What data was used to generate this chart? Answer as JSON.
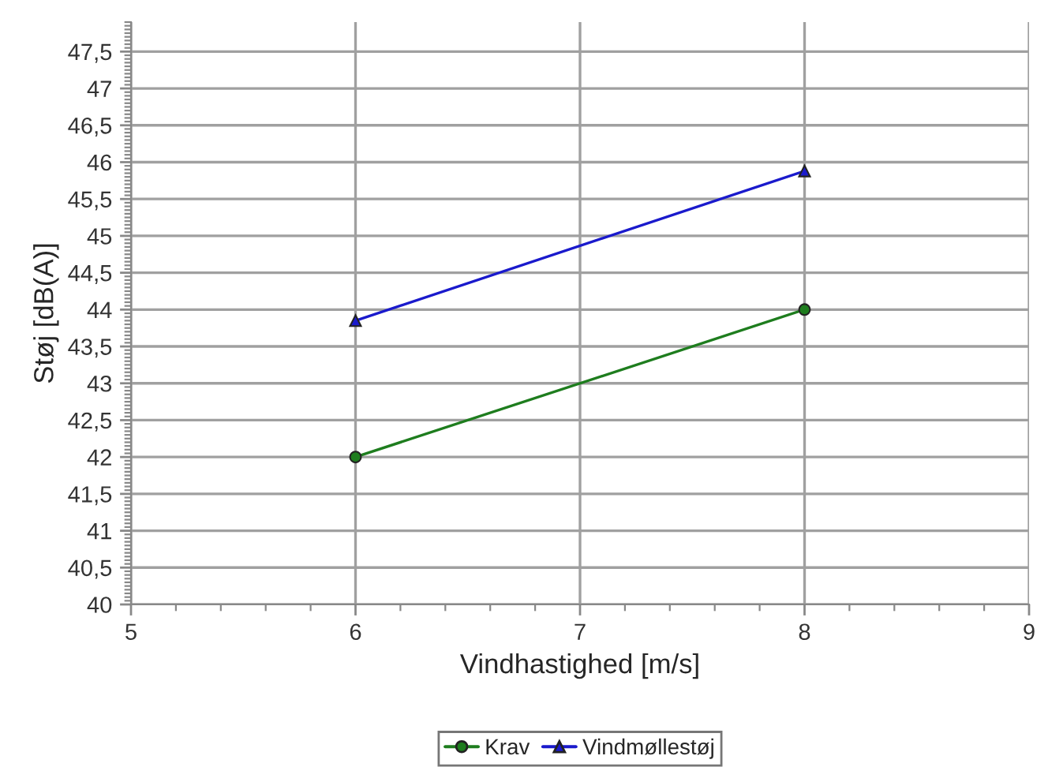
{
  "chart_data": {
    "type": "line",
    "xlabel": "Vindhastighed [m/s]",
    "ylabel": "Støj [dB(A)]",
    "x": [
      6,
      8
    ],
    "series": [
      {
        "name": "Krav",
        "color": "#1e7d1e",
        "values": [
          42,
          44
        ],
        "marker": "circle"
      },
      {
        "name": "Vindmøllestøj",
        "color": "#1a1acc",
        "values": [
          43.85,
          45.88
        ],
        "marker": "triangle"
      }
    ],
    "xlim": [
      5,
      9
    ],
    "xticks": [
      5,
      6,
      7,
      8,
      9
    ],
    "ylim": [
      40,
      47.9
    ],
    "yticks": [
      40,
      {
        "value": 40.5,
        "label": "40,5"
      },
      41,
      {
        "value": 41.5,
        "label": "41,5"
      },
      42,
      {
        "value": 42.5,
        "label": "42,5"
      },
      43,
      {
        "value": 43.5,
        "label": "43,5"
      },
      44,
      {
        "value": 44.5,
        "label": "44,5"
      },
      45,
      {
        "value": 45.5,
        "label": "45,5"
      },
      46,
      {
        "value": 46.5,
        "label": "46,5"
      },
      47,
      {
        "value": 47.5,
        "label": "47,5"
      }
    ],
    "grid": true,
    "legend": "bottom",
    "line_style": "solid"
  }
}
